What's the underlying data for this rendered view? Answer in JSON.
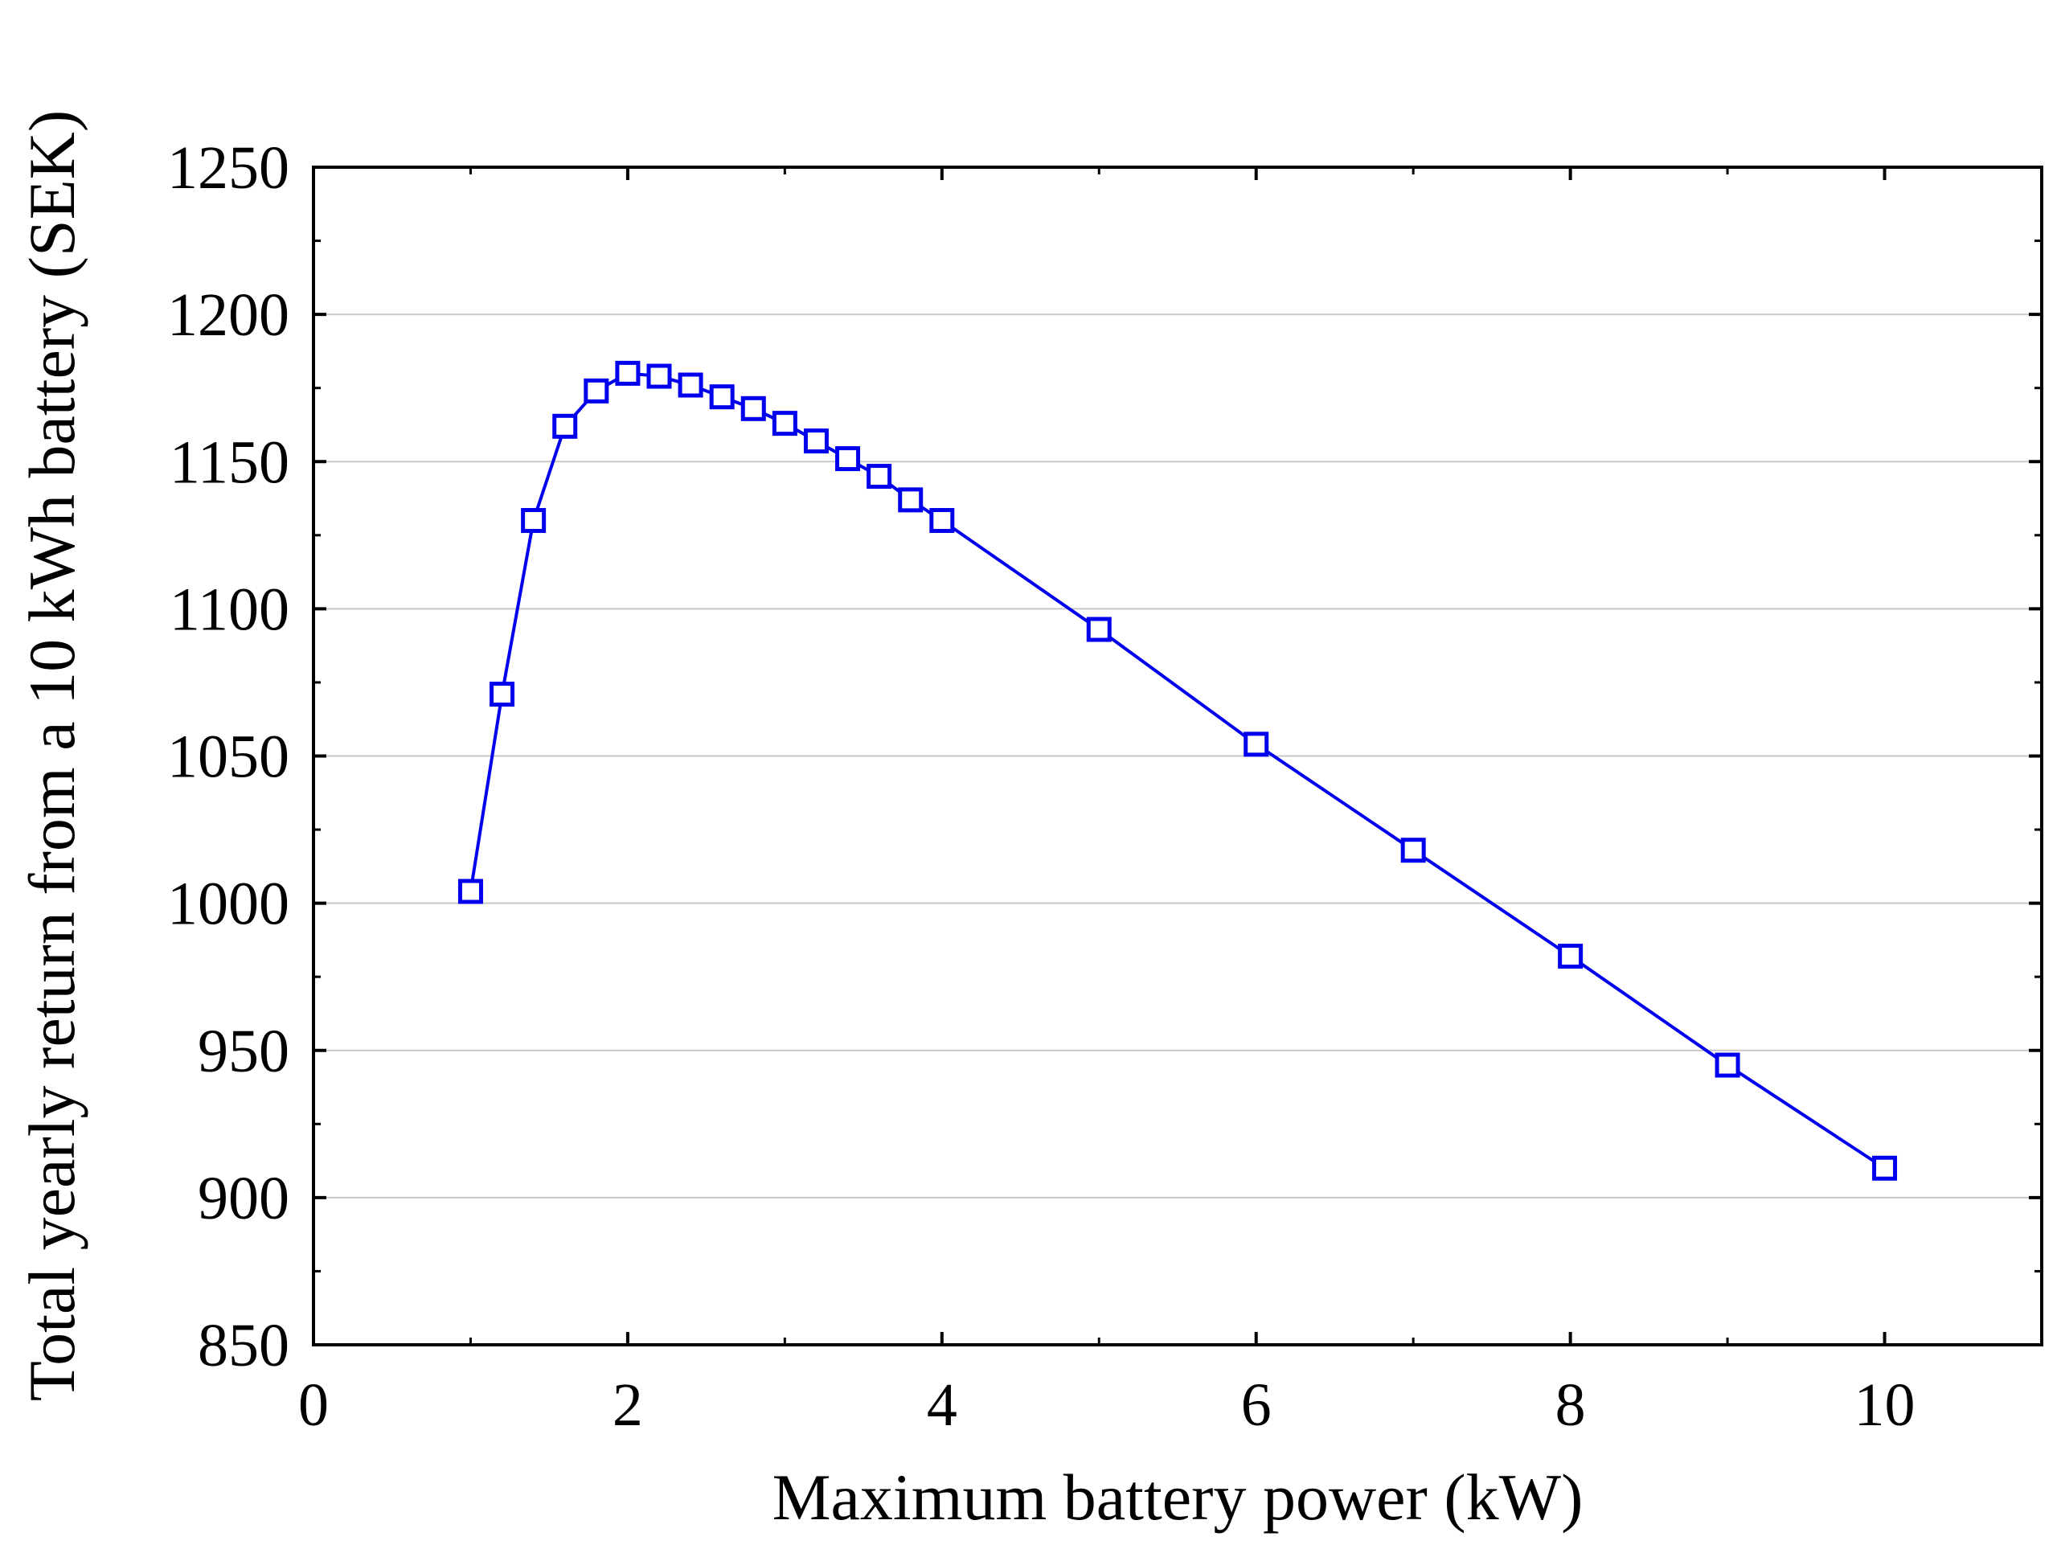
{
  "chart_data": {
    "type": "line",
    "title": "",
    "xlabel": "Maximum battery power (kW)",
    "ylabel": "Total yearly return from a 10 kWh battery (SEK)",
    "xlim": [
      0,
      11
    ],
    "ylim": [
      850,
      1250
    ],
    "xticks": [
      0,
      2,
      4,
      6,
      8,
      10
    ],
    "yticks": [
      850,
      900,
      950,
      1000,
      1050,
      1100,
      1150,
      1200,
      1250
    ],
    "grid": "horizontal",
    "marker": "open-square",
    "series": [
      {
        "name": "Total yearly return",
        "color": "#0000ee",
        "x": [
          1.0,
          1.2,
          1.4,
          1.6,
          1.8,
          2.0,
          2.2,
          2.4,
          2.6,
          2.8,
          3.0,
          3.2,
          3.4,
          3.6,
          3.8,
          4.0,
          5.0,
          6.0,
          7.0,
          8.0,
          9.0,
          10.0
        ],
        "y": [
          1004,
          1071,
          1130,
          1162,
          1174,
          1180,
          1179,
          1176,
          1172,
          1168,
          1163,
          1157,
          1151,
          1145,
          1137,
          1130,
          1093,
          1054,
          1018,
          982,
          945,
          910
        ]
      }
    ]
  }
}
